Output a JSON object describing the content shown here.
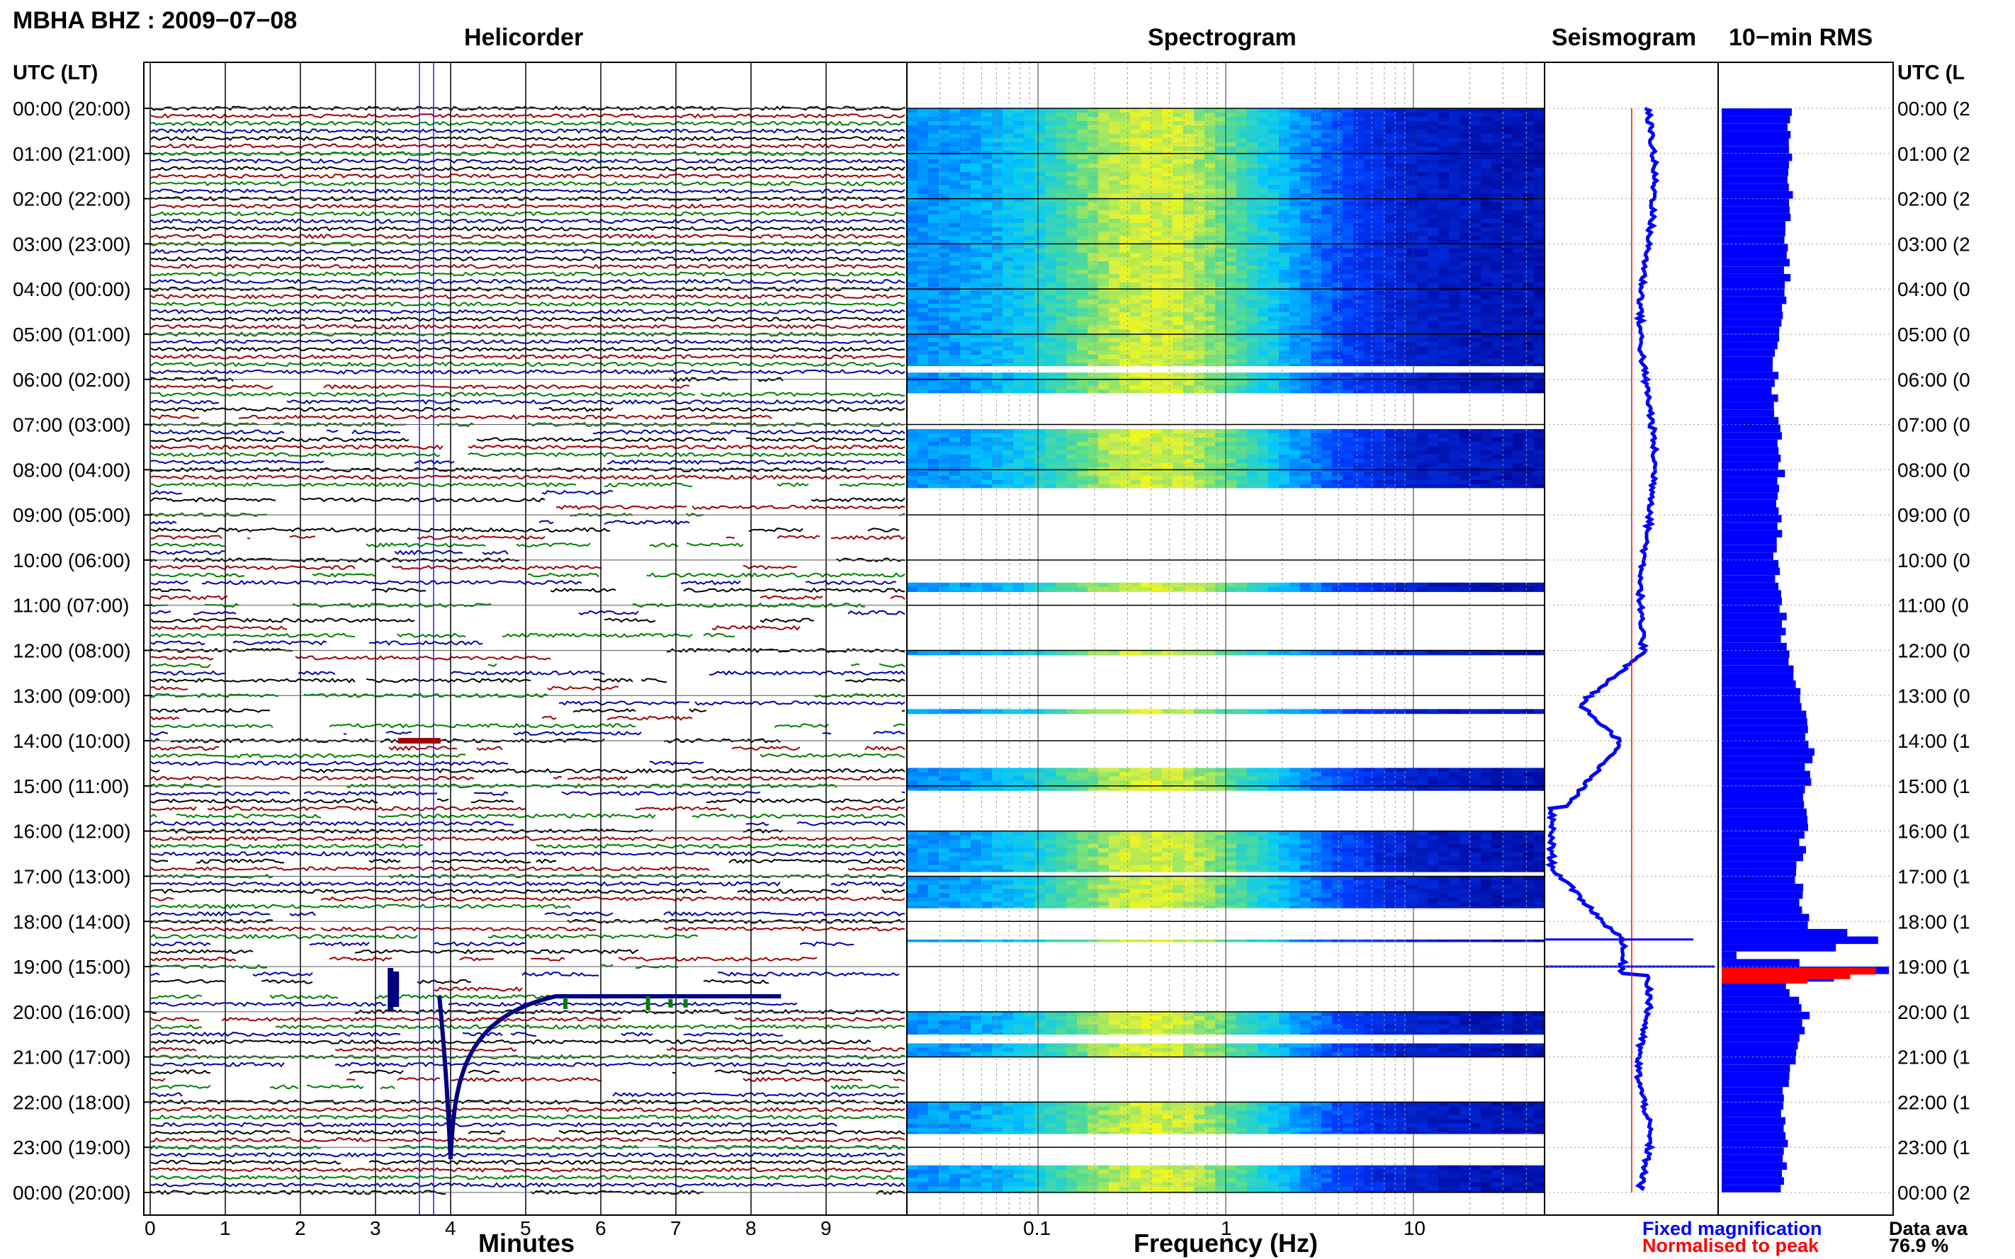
{
  "header": {
    "station_title": "MBHA BHZ : 2009−07−08",
    "helicorder_title": "Helicorder",
    "spectrogram_title": "Spectrogram",
    "seismogram_title": "Seismogram",
    "rms_title": "10−min RMS",
    "utc_label_left": "UTC (LT)",
    "utc_label_right": "UTC (L"
  },
  "footer": {
    "minutes_label": "Minutes",
    "frequency_label": "Frequency (Hz)",
    "legend_fixed": "Fixed magnification",
    "legend_normalised": "Normalised to peak",
    "data_avail_label": "Data ava",
    "data_avail_value": "76.9 %"
  },
  "colors": {
    "trace_cycle": [
      "#000000",
      "#a00000",
      "#008000",
      "#0000b0"
    ],
    "fixed_magnification": "#0000ff",
    "normalised_to_peak": "#ff0000"
  },
  "chart_data": [
    {
      "type": "line",
      "title": "Helicorder",
      "xlabel": "Minutes",
      "ylabel": "UTC (LT)",
      "x_ticks": [
        0,
        1,
        2,
        3,
        4,
        5,
        6,
        7,
        8,
        9
      ],
      "xlim": [
        0,
        10
      ],
      "grid": true,
      "hour_labels": [
        "00:00 (20:00)",
        "01:00 (21:00)",
        "02:00 (22:00)",
        "03:00 (23:00)",
        "04:00 (00:00)",
        "05:00 (01:00)",
        "06:00 (02:00)",
        "07:00 (03:00)",
        "08:00 (04:00)",
        "09:00 (05:00)",
        "10:00 (06:00)",
        "11:00 (07:00)",
        "12:00 (08:00)",
        "13:00 (09:00)",
        "14:00 (10:00)",
        "15:00 (11:00)",
        "16:00 (12:00)",
        "17:00 (13:00)",
        "18:00 (14:00)",
        "19:00 (15:00)",
        "20:00 (16:00)",
        "21:00 (17:00)",
        "22:00 (18:00)",
        "23:00 (19:00)",
        "00:00 (20:00)"
      ],
      "right_hour_labels": [
        "00:00 (2",
        "01:00 (2",
        "02:00 (2",
        "03:00 (2",
        "04:00 (0",
        "05:00 (0",
        "06:00 (0",
        "07:00 (0",
        "08:00 (0",
        "09:00 (0",
        "10:00 (0",
        "11:00 (0",
        "12:00 (0",
        "13:00 (0",
        "14:00 (1",
        "15:00 (1",
        "16:00 (1",
        "17:00 (1",
        "18:00 (1",
        "19:00 (1",
        "20:00 (1",
        "21:00 (1",
        "22:00 (1",
        "23:00 (1",
        "00:00 (2"
      ],
      "lines_per_hour": 6,
      "event": {
        "utc": "19:30",
        "minute_range": [
          3.2,
          4.1
        ]
      }
    },
    {
      "type": "heatmap",
      "title": "Spectrogram",
      "xlabel": "Frequency (Hz)",
      "x_scale": "log",
      "x_ticks": [
        "0.1",
        "1",
        "10"
      ],
      "xlim": [
        0.02,
        50
      ],
      "peak_band_hz": [
        0.3,
        0.5
      ],
      "data_present_hours": [
        [
          0,
          5.7
        ],
        [
          5.85,
          6.3
        ],
        [
          7.1,
          8.4
        ],
        [
          10.5,
          10.7
        ],
        [
          12.0,
          12.1
        ],
        [
          13.3,
          13.4
        ],
        [
          14.6,
          15.1
        ],
        [
          16.0,
          16.9
        ],
        [
          17.0,
          17.7
        ],
        [
          18.4,
          18.45
        ],
        [
          20.0,
          20.5
        ],
        [
          20.7,
          21.0
        ],
        [
          22.0,
          22.7
        ],
        [
          23.4,
          24.0
        ]
      ]
    },
    {
      "type": "line",
      "title": "Seismogram",
      "series": [
        {
          "name": "Fixed magnification",
          "color": "#0000ff"
        },
        {
          "name": "Normalised to peak",
          "color": "#ff0000"
        }
      ]
    },
    {
      "type": "bar",
      "title": "10−min RMS",
      "orientation": "horizontal",
      "profile": [
        [
          0,
          0.4
        ],
        [
          4,
          0.38
        ],
        [
          6,
          0.3
        ],
        [
          8,
          0.35
        ],
        [
          10,
          0.32
        ],
        [
          12,
          0.38
        ],
        [
          13,
          0.45
        ],
        [
          14,
          0.52
        ],
        [
          15,
          0.5
        ],
        [
          16,
          0.48
        ],
        [
          17,
          0.45
        ],
        [
          18,
          0.5
        ],
        [
          18.4,
          1.0
        ],
        [
          18.7,
          0.0
        ],
        [
          19.0,
          1.0
        ],
        [
          19.3,
          0.35
        ],
        [
          20,
          0.5
        ],
        [
          21,
          0.42
        ],
        [
          22,
          0.35
        ],
        [
          23,
          0.38
        ],
        [
          24,
          0.35
        ]
      ]
    }
  ]
}
